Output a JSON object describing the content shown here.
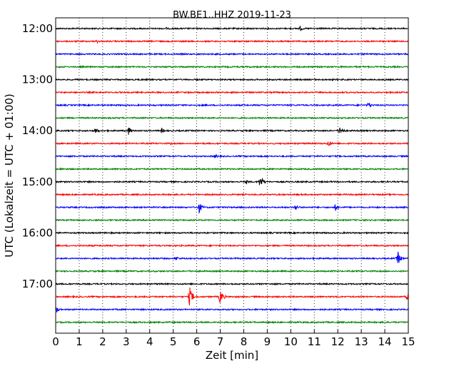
{
  "chart_data": {
    "type": "line",
    "title": "BW.BE1..HHZ 2019-11-23",
    "xlabel": "Zeit  [min]",
    "ylabel": "UTC (Lokalzeit = UTC + 01:00)",
    "xlim": [
      0,
      15
    ],
    "x_ticks": [
      "0",
      "1",
      "2",
      "3",
      "4",
      "5",
      "6",
      "7",
      "8",
      "9",
      "10",
      "11",
      "12",
      "13",
      "14",
      "15"
    ],
    "y_ticks": [
      "12:00",
      "13:00",
      "14:00",
      "15:00",
      "16:00",
      "17:00"
    ],
    "grid": "vertical dotted",
    "colors": [
      "#000000",
      "#ff0000",
      "#0000ff",
      "#008000"
    ],
    "traces": [
      {
        "label": "12:00",
        "color": "#000000",
        "events": [
          {
            "t": 10.4,
            "amp": 4
          },
          {
            "t": 4.7,
            "amp": 2
          }
        ]
      },
      {
        "label": "12:15",
        "color": "#ff0000",
        "events": [
          {
            "t": 1.75,
            "amp": 3
          }
        ]
      },
      {
        "label": "12:30",
        "color": "#0000ff",
        "events": [
          {
            "t": 12.5,
            "amp": 2
          }
        ]
      },
      {
        "label": "12:45",
        "color": "#008000",
        "events": []
      },
      {
        "label": "13:00",
        "color": "#000000",
        "events": []
      },
      {
        "label": "13:15",
        "color": "#ff0000",
        "events": []
      },
      {
        "label": "13:30",
        "color": "#0000ff",
        "events": [
          {
            "t": 13.3,
            "amp": 5
          }
        ]
      },
      {
        "label": "13:45",
        "color": "#008000",
        "events": []
      },
      {
        "label": "14:00",
        "color": "#000000",
        "events": [
          {
            "t": 1.7,
            "amp": 5
          },
          {
            "t": 3.1,
            "amp": 6
          },
          {
            "t": 4.5,
            "amp": 4
          },
          {
            "t": 12.1,
            "amp": 8
          }
        ]
      },
      {
        "label": "14:15",
        "color": "#ff0000",
        "events": [
          {
            "t": 4.9,
            "amp": 2
          },
          {
            "t": 11.6,
            "amp": 5
          }
        ]
      },
      {
        "label": "14:30",
        "color": "#0000ff",
        "events": [
          {
            "t": 6.8,
            "amp": 3
          }
        ]
      },
      {
        "label": "14:45",
        "color": "#008000",
        "events": [
          {
            "t": 0.2,
            "amp": 2
          }
        ]
      },
      {
        "label": "15:00",
        "color": "#000000",
        "events": [
          {
            "t": 8.7,
            "amp": 9
          },
          {
            "t": 8.1,
            "amp": 3
          }
        ]
      },
      {
        "label": "15:15",
        "color": "#ff0000",
        "events": []
      },
      {
        "label": "15:30",
        "color": "#0000ff",
        "events": [
          {
            "t": 6.1,
            "amp": 8
          },
          {
            "t": 10.2,
            "amp": 5
          },
          {
            "t": 11.9,
            "amp": 5
          }
        ]
      },
      {
        "label": "15:45",
        "color": "#008000",
        "events": []
      },
      {
        "label": "16:00",
        "color": "#000000",
        "events": []
      },
      {
        "label": "16:15",
        "color": "#ff0000",
        "events": []
      },
      {
        "label": "16:30",
        "color": "#0000ff",
        "events": [
          {
            "t": 5.1,
            "amp": 4
          },
          {
            "t": 14.55,
            "amp": 10
          }
        ]
      },
      {
        "label": "16:45",
        "color": "#008000",
        "events": []
      },
      {
        "label": "17:00",
        "color": "#000000",
        "events": []
      },
      {
        "label": "17:15",
        "color": "#ff0000",
        "events": [
          {
            "t": 5.7,
            "amp": 14
          },
          {
            "t": 7.0,
            "amp": 11
          },
          {
            "t": 14.95,
            "amp": 8
          }
        ]
      },
      {
        "label": "17:30",
        "color": "#0000ff",
        "events": [
          {
            "t": 0.05,
            "amp": 4
          }
        ]
      },
      {
        "label": "17:45",
        "color": "#008000",
        "events": []
      }
    ]
  }
}
